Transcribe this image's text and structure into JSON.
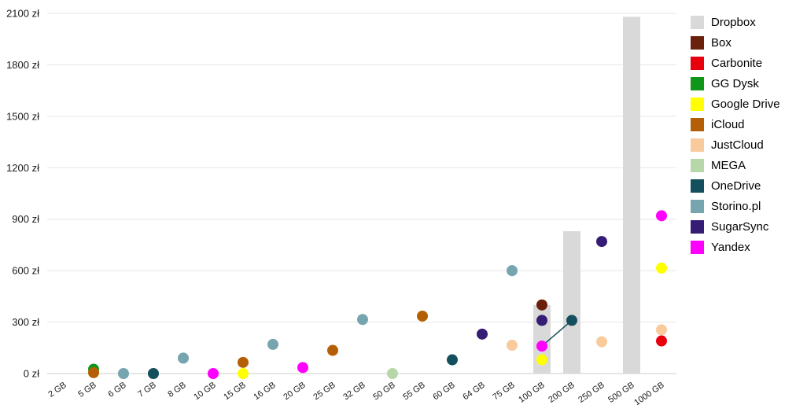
{
  "chart_data": {
    "type": "scatter",
    "title": "",
    "xlabel": "",
    "ylabel": "",
    "ylim": [
      0,
      2100
    ],
    "grid": true,
    "legend_position": "right",
    "grid_color": "#e6e6e6",
    "baseline_color": "#cccccc",
    "axis_text_color": "#1a1a1a",
    "y_ticks": [
      {
        "value": 0,
        "label": "0 zł"
      },
      {
        "value": 300,
        "label": "300 zł"
      },
      {
        "value": 600,
        "label": "600 zł"
      },
      {
        "value": 900,
        "label": "900 zł"
      },
      {
        "value": 1200,
        "label": "1200 zł"
      },
      {
        "value": 1500,
        "label": "1500 zł"
      },
      {
        "value": 1800,
        "label": "1800 zł"
      },
      {
        "value": 2100,
        "label": "2100 zł"
      }
    ],
    "categories": [
      "2 GB",
      "5 GB",
      "6 GB",
      "7 GB",
      "8 GB",
      "10 GB",
      "15 GB",
      "16 GB",
      "20 GB",
      "25 GB",
      "32 GB",
      "50 GB",
      "55 GB",
      "60 GB",
      "64 GB",
      "75 GB",
      "100 GB",
      "200 GB",
      "250 GB",
      "500 GB",
      "1000 GB"
    ],
    "series": [
      {
        "name": "Dropbox",
        "color": "#d9d9d9",
        "type": "bar",
        "points": [
          {
            "x": "100 GB",
            "y": 400
          },
          {
            "x": "200 GB",
            "y": 830
          },
          {
            "x": "500 GB",
            "y": 2080
          }
        ]
      },
      {
        "name": "Box",
        "color": "#6b200c",
        "type": "scatter",
        "points": [
          {
            "x": "100 GB",
            "y": 400
          }
        ]
      },
      {
        "name": "Carbonite",
        "color": "#e8000d",
        "type": "scatter",
        "points": [
          {
            "x": "1000 GB",
            "y": 190
          }
        ]
      },
      {
        "name": "GG Dysk",
        "color": "#109618",
        "type": "scatter",
        "points": [
          {
            "x": "5 GB",
            "y": 25
          }
        ]
      },
      {
        "name": "Google Drive",
        "color": "#ffff00",
        "type": "scatter",
        "points": [
          {
            "x": "15 GB",
            "y": 0
          },
          {
            "x": "100 GB",
            "y": 80
          },
          {
            "x": "1000 GB",
            "y": 615
          }
        ]
      },
      {
        "name": "iCloud",
        "color": "#b45f06",
        "type": "scatter",
        "points": [
          {
            "x": "5 GB",
            "y": 5
          },
          {
            "x": "15 GB",
            "y": 65
          },
          {
            "x": "25 GB",
            "y": 135
          },
          {
            "x": "55 GB",
            "y": 335
          }
        ]
      },
      {
        "name": "JustCloud",
        "color": "#f9cb9c",
        "type": "scatter",
        "points": [
          {
            "x": "75 GB",
            "y": 165
          },
          {
            "x": "250 GB",
            "y": 185
          },
          {
            "x": "1000 GB",
            "y": 255
          }
        ]
      },
      {
        "name": "MEGA",
        "color": "#b6d7a8",
        "type": "scatter",
        "points": [
          {
            "x": "50 GB",
            "y": 0
          }
        ]
      },
      {
        "name": "OneDrive",
        "color": "#134f5c",
        "type": "scatter",
        "points": [
          {
            "x": "7 GB",
            "y": 0
          },
          {
            "x": "60 GB",
            "y": 80
          },
          {
            "x": "200 GB",
            "y": 310
          }
        ]
      },
      {
        "name": "Storino.pl",
        "color": "#76a5af",
        "type": "scatter",
        "points": [
          {
            "x": "6 GB",
            "y": 0
          },
          {
            "x": "8 GB",
            "y": 90
          },
          {
            "x": "16 GB",
            "y": 170
          },
          {
            "x": "32 GB",
            "y": 315
          },
          {
            "x": "75 GB",
            "y": 600
          }
        ]
      },
      {
        "name": "SugarSync",
        "color": "#351c75",
        "type": "scatter",
        "points": [
          {
            "x": "64 GB",
            "y": 230
          },
          {
            "x": "100 GB",
            "y": 310
          },
          {
            "x": "250 GB",
            "y": 770
          }
        ]
      },
      {
        "name": "Yandex",
        "color": "#ff00ff",
        "type": "scatter",
        "points": [
          {
            "x": "10 GB",
            "y": 0
          },
          {
            "x": "20 GB",
            "y": 35
          },
          {
            "x": "100 GB",
            "y": 160
          },
          {
            "x": "1000 GB",
            "y": 920
          }
        ]
      }
    ],
    "connector_line": {
      "color": "#134f5c",
      "points": [
        {
          "x": "100 GB",
          "y": 160
        },
        {
          "x": "200 GB",
          "y": 310
        }
      ]
    }
  }
}
